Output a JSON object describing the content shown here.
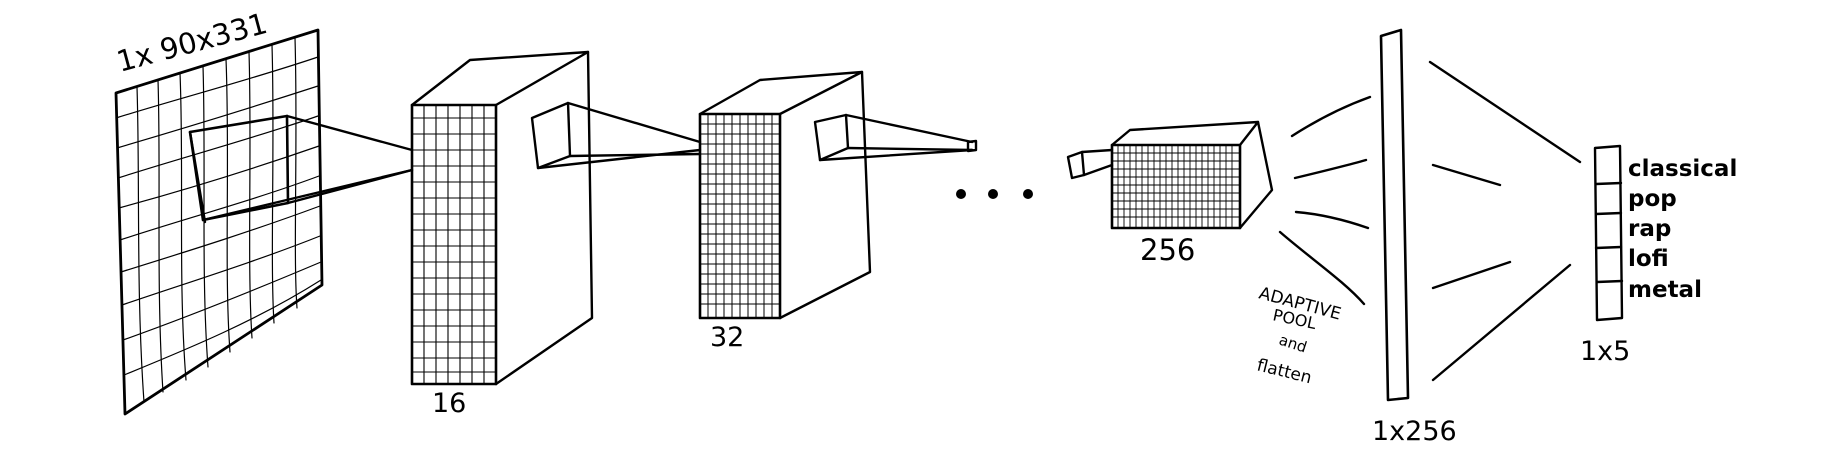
{
  "input_label": "1x 90x331",
  "conv_blocks": [
    {
      "label": "16"
    },
    {
      "label": "32"
    },
    {
      "label": "256"
    }
  ],
  "ellipsis": "• • •",
  "pool_note": [
    "ADAPTIVE",
    "POOL",
    "and",
    "flatten"
  ],
  "flatten_label": "1x256",
  "output_label": "1x5",
  "classes": [
    "classical",
    "pop",
    "rap",
    "lofi",
    "metal"
  ]
}
